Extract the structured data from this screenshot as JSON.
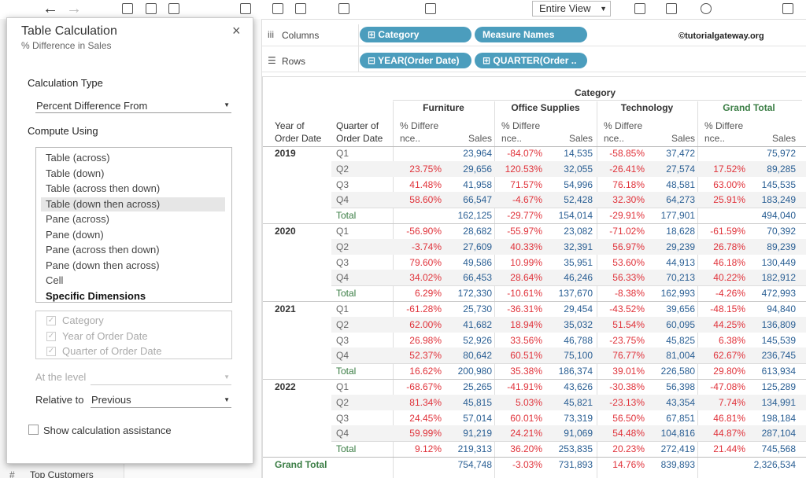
{
  "toolbar": {
    "view_mode": "Entire View"
  },
  "shelves": {
    "columns_label": "Columns",
    "columns_pills": [
      "Category",
      "Measure Names"
    ],
    "rows_label": "Rows",
    "rows_pills": [
      "YEAR(Order Date)",
      "QUARTER(Order .."
    ]
  },
  "watermark": "©tutorialgateway.org",
  "sidebar": {
    "item": "Top Customers"
  },
  "dialog": {
    "title": "Table Calculation",
    "subtitle": "% Difference in Sales",
    "calculation_type_label": "Calculation Type",
    "calculation_type": "Percent Difference From",
    "compute_using_label": "Compute Using",
    "compute_options": [
      "Table (across)",
      "Table (down)",
      "Table (across then down)",
      "Table (down then across)",
      "Pane (across)",
      "Pane (down)",
      "Pane (across then down)",
      "Pane (down then across)",
      "Cell",
      "Specific Dimensions"
    ],
    "selected_option": 3,
    "dimensions": [
      "Category",
      "Year of Order Date",
      "Quarter of Order Date"
    ],
    "at_level_label": "At the level",
    "relative_to_label": "Relative to",
    "relative_to": "Previous",
    "assistance": "Show calculation assistance"
  },
  "table": {
    "category_header": "Category",
    "groups": [
      "Furniture",
      "Office Supplies",
      "Technology",
      "Grand Total"
    ],
    "row_headers": [
      [
        "Year of",
        "Order Date"
      ],
      [
        "Quarter of",
        "Order Date"
      ]
    ],
    "measure_headers": [
      [
        "% Differe",
        "nce.."
      ],
      "Sales"
    ],
    "years": [
      {
        "year": "2019",
        "rows": [
          {
            "label": "Q1",
            "cells": [
              null,
              "23,964",
              "-84.07%",
              "14,535",
              "-58.85%",
              "37,472",
              null,
              "75,972"
            ]
          },
          {
            "label": "Q2",
            "cells": [
              "23.75%",
              "29,656",
              "120.53%",
              "32,055",
              "-26.41%",
              "27,574",
              "17.52%",
              "89,285"
            ]
          },
          {
            "label": "Q3",
            "cells": [
              "41.48%",
              "41,958",
              "71.57%",
              "54,996",
              "76.18%",
              "48,581",
              "63.00%",
              "145,535"
            ]
          },
          {
            "label": "Q4",
            "cells": [
              "58.60%",
              "66,547",
              "-4.67%",
              "52,428",
              "32.30%",
              "64,273",
              "25.91%",
              "183,249"
            ]
          },
          {
            "label": "Total",
            "cells": [
              null,
              "162,125",
              "-29.77%",
              "154,014",
              "-29.91%",
              "177,901",
              null,
              "494,040"
            ]
          }
        ]
      },
      {
        "year": "2020",
        "rows": [
          {
            "label": "Q1",
            "cells": [
              "-56.90%",
              "28,682",
              "-55.97%",
              "23,082",
              "-71.02%",
              "18,628",
              "-61.59%",
              "70,392"
            ]
          },
          {
            "label": "Q2",
            "cells": [
              "-3.74%",
              "27,609",
              "40.33%",
              "32,391",
              "56.97%",
              "29,239",
              "26.78%",
              "89,239"
            ]
          },
          {
            "label": "Q3",
            "cells": [
              "79.60%",
              "49,586",
              "10.99%",
              "35,951",
              "53.60%",
              "44,913",
              "46.18%",
              "130,449"
            ]
          },
          {
            "label": "Q4",
            "cells": [
              "34.02%",
              "66,453",
              "28.64%",
              "46,246",
              "56.33%",
              "70,213",
              "40.22%",
              "182,912"
            ]
          },
          {
            "label": "Total",
            "cells": [
              "6.29%",
              "172,330",
              "-10.61%",
              "137,670",
              "-8.38%",
              "162,993",
              "-4.26%",
              "472,993"
            ]
          }
        ]
      },
      {
        "year": "2021",
        "rows": [
          {
            "label": "Q1",
            "cells": [
              "-61.28%",
              "25,730",
              "-36.31%",
              "29,454",
              "-43.52%",
              "39,656",
              "-48.15%",
              "94,840"
            ]
          },
          {
            "label": "Q2",
            "cells": [
              "62.00%",
              "41,682",
              "18.94%",
              "35,032",
              "51.54%",
              "60,095",
              "44.25%",
              "136,809"
            ]
          },
          {
            "label": "Q3",
            "cells": [
              "26.98%",
              "52,926",
              "33.56%",
              "46,788",
              "-23.75%",
              "45,825",
              "6.38%",
              "145,539"
            ]
          },
          {
            "label": "Q4",
            "cells": [
              "52.37%",
              "80,642",
              "60.51%",
              "75,100",
              "76.77%",
              "81,004",
              "62.67%",
              "236,745"
            ]
          },
          {
            "label": "Total",
            "cells": [
              "16.62%",
              "200,980",
              "35.38%",
              "186,374",
              "39.01%",
              "226,580",
              "29.80%",
              "613,934"
            ]
          }
        ]
      },
      {
        "year": "2022",
        "rows": [
          {
            "label": "Q1",
            "cells": [
              "-68.67%",
              "25,265",
              "-41.91%",
              "43,626",
              "-30.38%",
              "56,398",
              "-47.08%",
              "125,289"
            ]
          },
          {
            "label": "Q2",
            "cells": [
              "81.34%",
              "45,815",
              "5.03%",
              "45,821",
              "-23.13%",
              "43,354",
              "7.74%",
              "134,991"
            ]
          },
          {
            "label": "Q3",
            "cells": [
              "24.45%",
              "57,014",
              "60.01%",
              "73,319",
              "56.50%",
              "67,851",
              "46.81%",
              "198,184"
            ]
          },
          {
            "label": "Q4",
            "cells": [
              "59.99%",
              "91,219",
              "24.21%",
              "91,069",
              "54.48%",
              "104,816",
              "44.87%",
              "287,104"
            ]
          },
          {
            "label": "Total",
            "cells": [
              "9.12%",
              "219,313",
              "36.20%",
              "253,835",
              "20.23%",
              "272,419",
              "21.44%",
              "745,568"
            ]
          }
        ]
      }
    ],
    "grand_total": {
      "label": "Grand Total",
      "cells": [
        null,
        "754,748",
        "-3.03%",
        "731,893",
        "14.76%",
        "839,893",
        null,
        "2,326,534"
      ]
    }
  }
}
